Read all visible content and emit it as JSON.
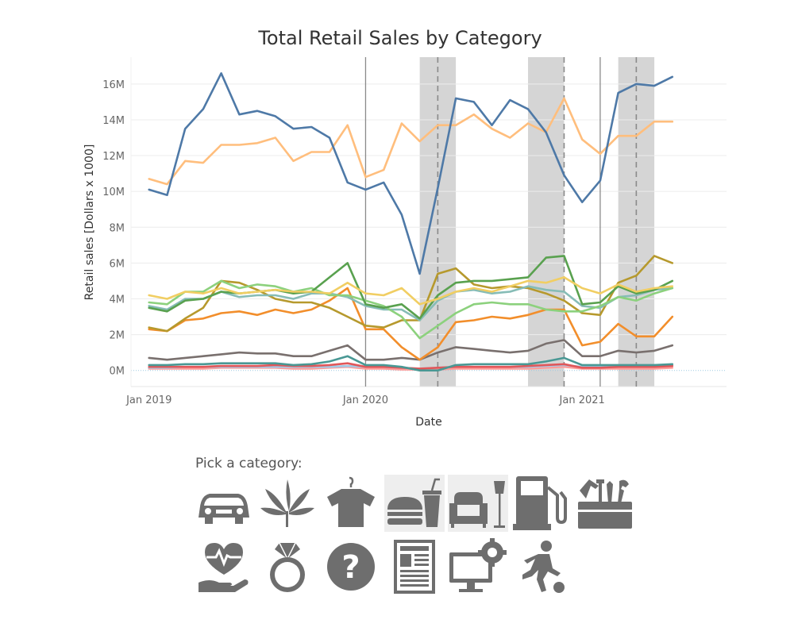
{
  "chart_data": {
    "type": "line",
    "title": "Total Retail Sales by Category",
    "xlabel": "Date",
    "ylabel": "Retail sales [Dollars x 1000]",
    "x_ticks": [
      "Jan 2019",
      "Jan 2020",
      "Jan 2021"
    ],
    "y_ticks": [
      "0M",
      "2M",
      "4M",
      "6M",
      "8M",
      "10M",
      "12M",
      "14M",
      "16M"
    ],
    "ylim": [
      -0.9,
      17.5
    ],
    "units": "M",
    "x_start": "Jan 2019",
    "x_end": "Jun 2021",
    "x_range": [
      "Dec 2018",
      "Sep 2021"
    ],
    "grid": "horizontal",
    "vertical_lines": [
      "Jan 2020",
      "Feb 2021"
    ],
    "shaded_periods": [
      {
        "start": "Apr 2020",
        "end": "Jun 2020",
        "dashed_at": "May 2020"
      },
      {
        "start": "Oct 2020",
        "end": "Dec 2020",
        "dashed_at": "Dec 2020"
      },
      {
        "start": "Mar 2021",
        "end": "May 2021",
        "dashed_at": "Apr 2021"
      }
    ],
    "series": [
      {
        "color": "#4e79a7",
        "values": [
          10.1,
          9.8,
          13.5,
          14.6,
          16.6,
          14.3,
          14.5,
          14.2,
          13.5,
          13.6,
          13.0,
          10.5,
          10.1,
          10.5,
          8.7,
          5.4,
          10.2,
          15.2,
          15.0,
          13.7,
          15.1,
          14.6,
          13.3,
          10.9,
          9.4,
          10.6,
          15.5,
          16.0,
          15.9,
          16.4
        ]
      },
      {
        "color": "#ffbe7d",
        "values": [
          10.7,
          10.4,
          11.7,
          11.6,
          12.6,
          12.6,
          12.7,
          13.0,
          11.7,
          12.2,
          12.2,
          13.7,
          10.8,
          11.2,
          13.8,
          12.8,
          13.7,
          13.7,
          14.3,
          13.5,
          13.0,
          13.8,
          13.3,
          15.2,
          12.9,
          12.1,
          13.1,
          13.1,
          13.9,
          13.9
        ]
      },
      {
        "color": "#f1ce63",
        "values": [
          4.2,
          4.0,
          4.4,
          4.3,
          4.6,
          4.3,
          4.4,
          4.5,
          4.4,
          4.4,
          4.3,
          4.9,
          4.3,
          4.2,
          4.6,
          3.7,
          4.0,
          4.4,
          4.6,
          4.4,
          4.7,
          5.0,
          4.9,
          5.2,
          4.6,
          4.3,
          4.8,
          4.4,
          4.6,
          4.7
        ]
      },
      {
        "color": "#59a14f",
        "values": [
          3.5,
          3.3,
          3.9,
          4.0,
          4.4,
          4.3,
          4.4,
          4.5,
          4.3,
          4.4,
          5.2,
          6.0,
          3.7,
          3.5,
          3.7,
          2.9,
          4.2,
          4.9,
          5.0,
          5.0,
          5.1,
          5.2,
          6.3,
          6.4,
          3.7,
          3.8,
          4.7,
          4.3,
          4.5,
          5.0
        ]
      },
      {
        "color": "#8cd17d",
        "values": [
          3.8,
          3.7,
          4.4,
          4.4,
          5.0,
          4.6,
          4.8,
          4.7,
          4.4,
          4.6,
          4.2,
          4.2,
          3.9,
          3.6,
          3.0,
          1.8,
          2.5,
          3.2,
          3.7,
          3.8,
          3.7,
          3.7,
          3.4,
          3.3,
          3.3,
          3.6,
          4.1,
          3.9,
          4.3,
          4.6
        ]
      },
      {
        "color": "#86bcb6",
        "values": [
          3.6,
          3.4,
          4.0,
          4.0,
          4.4,
          4.1,
          4.2,
          4.2,
          4.0,
          4.3,
          4.3,
          4.1,
          3.6,
          3.4,
          3.4,
          2.8,
          3.9,
          4.4,
          4.5,
          4.3,
          4.4,
          4.7,
          4.5,
          4.4,
          3.6,
          3.5,
          4.1,
          4.2,
          4.5,
          4.6
        ]
      },
      {
        "color": "#b6992d",
        "values": [
          2.4,
          2.2,
          2.9,
          3.5,
          5.0,
          4.9,
          4.5,
          4.0,
          3.8,
          3.8,
          3.5,
          3.0,
          2.5,
          2.4,
          2.8,
          2.8,
          5.4,
          5.7,
          4.8,
          4.6,
          4.7,
          4.6,
          4.3,
          3.9,
          3.2,
          3.1,
          4.9,
          5.3,
          6.4,
          6.0
        ]
      },
      {
        "color": "#f28e2b",
        "values": [
          2.3,
          2.2,
          2.8,
          2.9,
          3.2,
          3.3,
          3.1,
          3.4,
          3.2,
          3.4,
          3.9,
          4.6,
          2.3,
          2.3,
          1.3,
          0.6,
          1.3,
          2.7,
          2.8,
          3.0,
          2.9,
          3.1,
          3.4,
          3.4,
          1.4,
          1.6,
          2.6,
          1.9,
          1.9,
          3.0
        ]
      },
      {
        "color": "#79706e",
        "values": [
          0.7,
          0.6,
          0.7,
          0.8,
          0.9,
          1.0,
          0.95,
          0.95,
          0.8,
          0.8,
          1.1,
          1.4,
          0.6,
          0.6,
          0.7,
          0.6,
          1.0,
          1.3,
          1.2,
          1.1,
          1.0,
          1.1,
          1.5,
          1.7,
          0.8,
          0.8,
          1.1,
          1.0,
          1.1,
          1.4
        ]
      },
      {
        "color": "#499894",
        "values": [
          0.3,
          0.3,
          0.35,
          0.35,
          0.4,
          0.4,
          0.4,
          0.4,
          0.3,
          0.35,
          0.5,
          0.8,
          0.3,
          0.3,
          0.2,
          0.0,
          0.0,
          0.3,
          0.35,
          0.35,
          0.35,
          0.35,
          0.5,
          0.7,
          0.3,
          0.3,
          0.3,
          0.3,
          0.3,
          0.35
        ]
      },
      {
        "color": "#e15759",
        "values": [
          0.2,
          0.2,
          0.2,
          0.2,
          0.25,
          0.25,
          0.25,
          0.3,
          0.25,
          0.25,
          0.3,
          0.4,
          0.2,
          0.2,
          0.15,
          0.1,
          0.15,
          0.2,
          0.2,
          0.2,
          0.2,
          0.25,
          0.3,
          0.35,
          0.15,
          0.15,
          0.2,
          0.2,
          0.2,
          0.25
        ]
      },
      {
        "color": "#a0cbe8",
        "values": [
          0.15,
          0.15,
          0.2,
          0.2,
          0.2,
          0.2,
          0.2,
          0.2,
          0.2,
          0.2,
          0.2,
          0.25,
          0.2,
          0.2,
          0.15,
          0.1,
          0.15,
          0.2,
          0.2,
          0.2,
          0.2,
          0.2,
          0.25,
          0.3,
          0.2,
          0.2,
          0.25,
          0.25,
          0.3,
          0.3
        ]
      },
      {
        "color": "#ff9d9a",
        "values": [
          0.1,
          0.1,
          0.1,
          0.1,
          0.15,
          0.15,
          0.15,
          0.15,
          0.1,
          0.1,
          0.15,
          0.2,
          0.1,
          0.1,
          0.05,
          0.05,
          0.05,
          0.1,
          0.1,
          0.1,
          0.1,
          0.1,
          0.15,
          0.2,
          0.1,
          0.1,
          0.1,
          0.1,
          0.1,
          0.15
        ]
      }
    ]
  },
  "picker": {
    "label": "Pick a category:",
    "icons": [
      {
        "name": "car-icon",
        "row": 1,
        "col": 0
      },
      {
        "name": "cannabis-leaf-icon",
        "row": 1,
        "col": 1
      },
      {
        "name": "shirt-icon",
        "row": 1,
        "col": 2
      },
      {
        "name": "food-drink-icon",
        "row": 1,
        "col": 3,
        "highlight": true
      },
      {
        "name": "furniture-icon",
        "row": 1,
        "col": 4,
        "highlight": true
      },
      {
        "name": "gas-pump-icon",
        "row": 1,
        "col": 5
      },
      {
        "name": "toolbox-icon",
        "row": 1,
        "col": 6
      },
      {
        "name": "health-care-icon",
        "row": 2,
        "col": 0
      },
      {
        "name": "ring-icon",
        "row": 2,
        "col": 1
      },
      {
        "name": "question-icon",
        "row": 2,
        "col": 2
      },
      {
        "name": "newspaper-icon",
        "row": 2,
        "col": 3
      },
      {
        "name": "computer-gear-icon",
        "row": 2,
        "col": 4
      },
      {
        "name": "sports-icon",
        "row": 2,
        "col": 5
      }
    ],
    "icon_color": "#6e6e6e"
  }
}
